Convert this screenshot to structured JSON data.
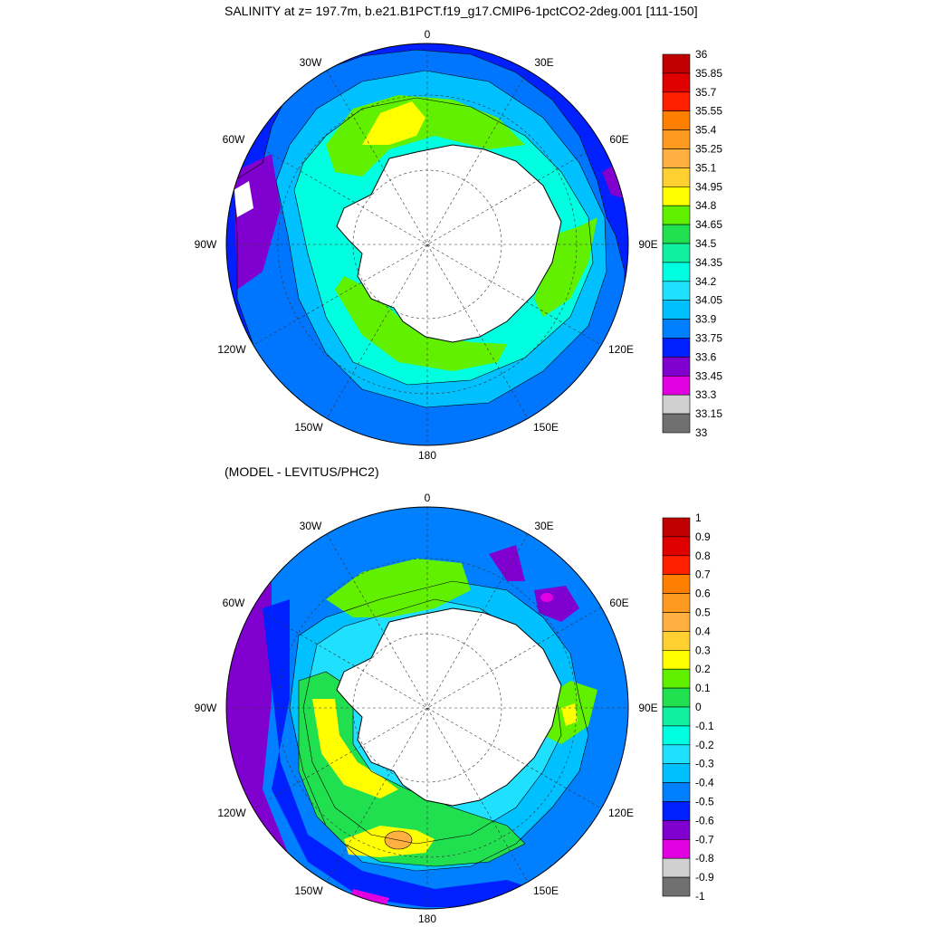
{
  "titles": {
    "main": "SALINITY at z= 197.7m, b.e21.B1PCT.f19_g17.CMIP6-1pctCO2-2deg.001 [111-150]",
    "sub": "(MODEL - LEVITUS/PHC2)"
  },
  "longitude_labels": {
    "n": "0",
    "e30": "30E",
    "e60": "60E",
    "e90": "90E",
    "e120": "120E",
    "e150": "150E",
    "s": "180",
    "w150": "150W",
    "w120": "120W",
    "w90": "90W",
    "w60": "60W",
    "w30": "30W"
  },
  "salinity_colorbar": {
    "labels": [
      "36",
      "35.85",
      "35.7",
      "35.55",
      "35.4",
      "35.25",
      "35.1",
      "34.95",
      "34.8",
      "34.65",
      "34.5",
      "34.35",
      "34.2",
      "34.05",
      "33.9",
      "33.75",
      "33.6",
      "33.45",
      "33.3",
      "33.15",
      "33"
    ],
    "colors": [
      "#c00000",
      "#e00000",
      "#ff2000",
      "#ff8000",
      "#ff9a20",
      "#ffb040",
      "#ffd030",
      "#ffff00",
      "#60f000",
      "#20e050",
      "#10f0a0",
      "#00ffe0",
      "#20e0ff",
      "#00c0ff",
      "#0080ff",
      "#0020ff",
      "#8000d0",
      "#e000e0",
      "#d0d0d0",
      "#707070"
    ]
  },
  "difference_colorbar": {
    "labels": [
      "1",
      "0.9",
      "0.8",
      "0.7",
      "0.6",
      "0.5",
      "0.4",
      "0.3",
      "0.2",
      "0.1",
      "0",
      "-0.1",
      "-0.2",
      "-0.3",
      "-0.4",
      "-0.5",
      "-0.6",
      "-0.7",
      "-0.8",
      "-0.9",
      "-1"
    ],
    "colors": [
      "#c00000",
      "#e00000",
      "#ff2000",
      "#ff8000",
      "#ff9a20",
      "#ffb040",
      "#ffd030",
      "#ffff00",
      "#60f000",
      "#20e050",
      "#10f0a0",
      "#00ffe0",
      "#20e0ff",
      "#00c0ff",
      "#0080ff",
      "#0020ff",
      "#8000d0",
      "#e000e0",
      "#d0d0d0",
      "#707070"
    ]
  }
}
